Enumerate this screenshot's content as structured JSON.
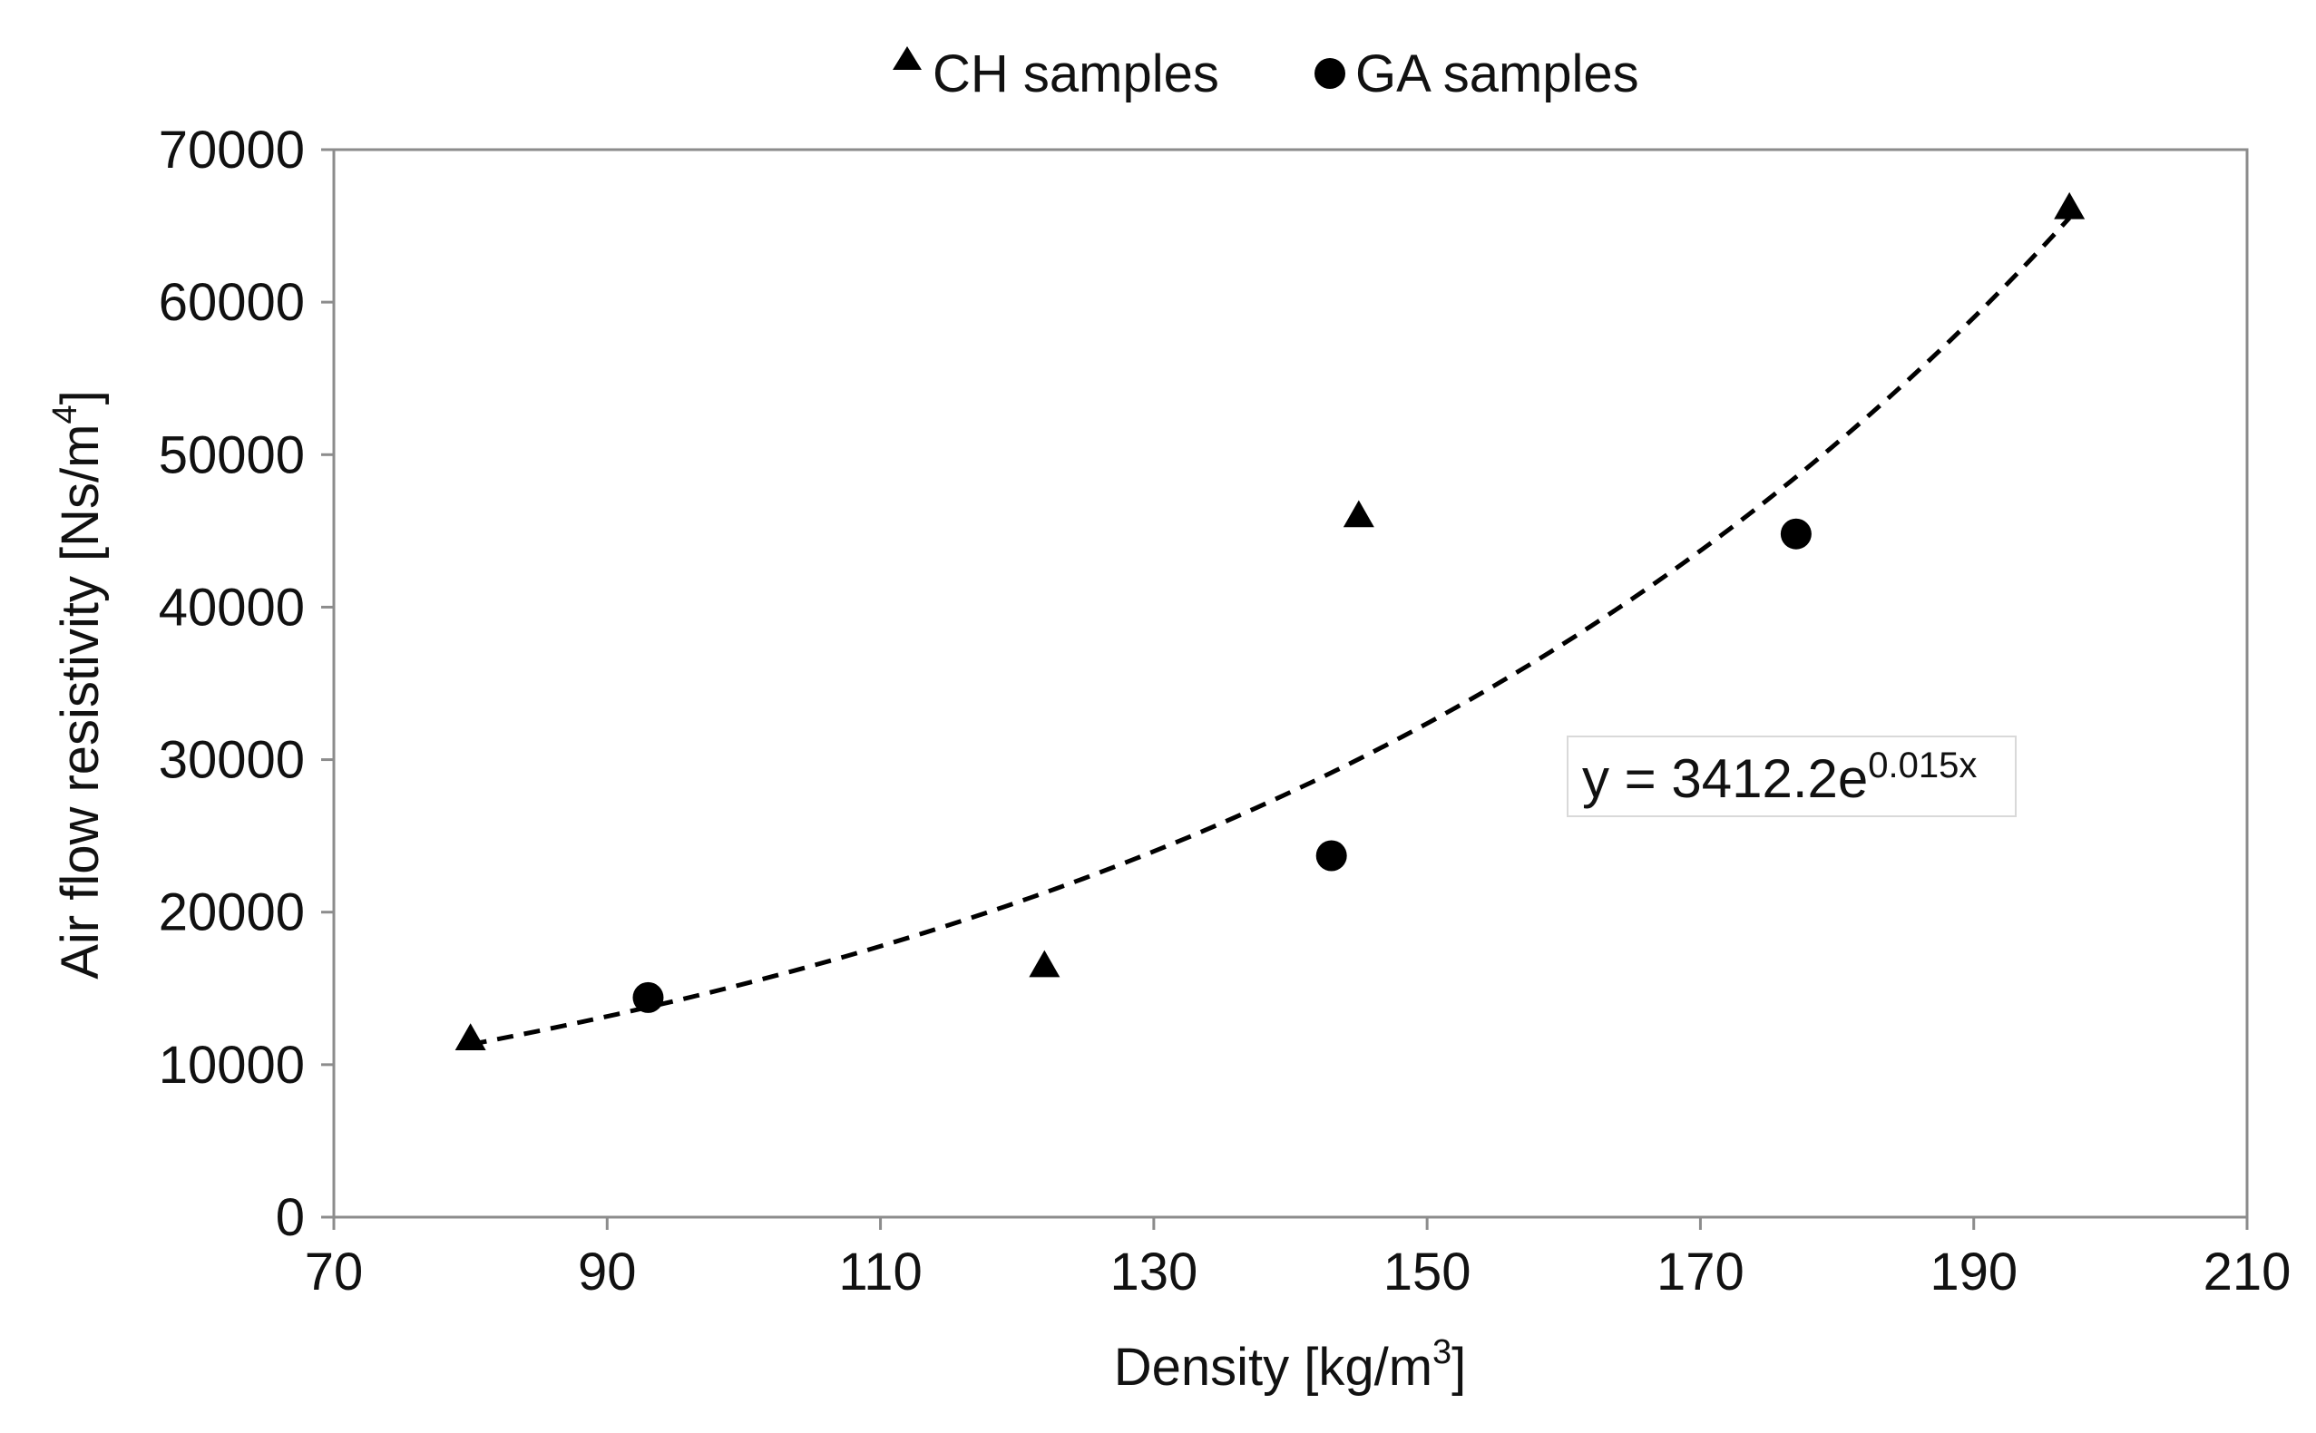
{
  "chart_data": {
    "type": "scatter",
    "title": "",
    "xlabel": "Density [kg/m",
    "xlabel_sup": "3",
    "xlabel_end": "]",
    "ylabel": "Air flow resistivity [Ns/m",
    "ylabel_sup": "4",
    "ylabel_end": "]",
    "xlim": [
      70,
      210
    ],
    "ylim": [
      0,
      70000
    ],
    "xticks": [
      70,
      90,
      110,
      130,
      150,
      170,
      190,
      210
    ],
    "yticks": [
      0,
      10000,
      20000,
      30000,
      40000,
      50000,
      60000,
      70000
    ],
    "grid": false,
    "legend_position": "top-center",
    "series": [
      {
        "name": "CH samples",
        "marker": "triangle",
        "color": "#000000",
        "x": [
          80,
          122,
          145,
          197
        ],
        "y": [
          11700,
          16500,
          46000,
          66200
        ]
      },
      {
        "name": "GA samples",
        "marker": "circle",
        "color": "#000000",
        "x": [
          93,
          143,
          177
        ],
        "y": [
          14400,
          23700,
          44800
        ]
      }
    ],
    "trendline": {
      "type": "exponential",
      "a": 3412.2,
      "b": 0.015,
      "x_range": [
        80,
        197
      ],
      "style": "dashed",
      "color": "#000000",
      "label_main": "y = 3412.2e",
      "label_sup": "0.015x"
    }
  }
}
